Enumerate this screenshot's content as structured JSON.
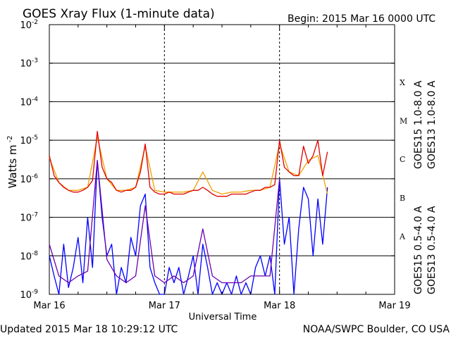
{
  "header": {
    "title": "GOES Xray Flux (1-minute data)",
    "begin": "Begin:  2015 Mar 16 0000 UTC"
  },
  "footer": {
    "updated": "Updated 2015 Mar 18 10:29:12 UTC",
    "credit": "NOAA/SWPC Boulder, CO USA"
  },
  "colors": {
    "goes15_long": "#e00000",
    "goes13_long": "#f0a000",
    "goes15_short": "#0000ff",
    "goes13_short": "#6a00b0"
  },
  "chart_data": {
    "type": "line",
    "title": "GOES Xray Flux (1-minute data)",
    "xlabel": "Universal Time",
    "ylabel": "Watts m",
    "ylabel_sup": "-2",
    "y_scale": "log",
    "ylim": [
      1e-09,
      0.01
    ],
    "xlim": [
      "2015-03-16 00:00",
      "2015-03-19 00:00"
    ],
    "x_ticks": [
      {
        "x": "2015-03-16 00:00",
        "label": "Mar 16"
      },
      {
        "x": "2015-03-17 00:00",
        "label": "Mar 17"
      },
      {
        "x": "2015-03-18 00:00",
        "label": "Mar 18"
      },
      {
        "x": "2015-03-19 00:00",
        "label": "Mar 19"
      }
    ],
    "y_ticks": [
      {
        "value": 1e-09,
        "label": "10",
        "exp": "-9"
      },
      {
        "value": 1e-08,
        "label": "10",
        "exp": "-8"
      },
      {
        "value": 1e-07,
        "label": "10",
        "exp": "-7"
      },
      {
        "value": 1e-06,
        "label": "10",
        "exp": "-6"
      },
      {
        "value": 1e-05,
        "label": "10",
        "exp": "-5"
      },
      {
        "value": 0.0001,
        "label": "10",
        "exp": "-4"
      },
      {
        "value": 0.001,
        "label": "10",
        "exp": "-3"
      },
      {
        "value": 0.01,
        "label": "10",
        "exp": "-2"
      }
    ],
    "flare_classes": [
      {
        "label": "X",
        "value": 0.00032
      },
      {
        "label": "M",
        "value": 3.2e-05
      },
      {
        "label": "C",
        "value": 3.2e-06
      },
      {
        "label": "B",
        "value": 3.2e-07
      },
      {
        "label": "A",
        "value": 3.2e-08
      }
    ],
    "grid": "horizontal lines at each decade",
    "legend": "right side, vertical text",
    "series": [
      {
        "name": "GOES15 1.0-8.0 A",
        "color": "#e00000",
        "x": [
          "2015-03-16 00:00",
          "2015-03-16 01:00",
          "2015-03-16 02:00",
          "2015-03-16 03:00",
          "2015-03-16 04:00",
          "2015-03-16 05:00",
          "2015-03-16 06:00",
          "2015-03-16 07:00",
          "2015-03-16 08:00",
          "2015-03-16 09:00",
          "2015-03-16 10:00",
          "2015-03-16 11:00",
          "2015-03-16 12:00",
          "2015-03-16 13:00",
          "2015-03-16 14:00",
          "2015-03-16 15:00",
          "2015-03-16 16:00",
          "2015-03-16 17:00",
          "2015-03-16 18:00",
          "2015-03-16 19:00",
          "2015-03-16 20:00",
          "2015-03-16 21:00",
          "2015-03-16 22:00",
          "2015-03-16 23:00",
          "2015-03-17 00:00",
          "2015-03-17 01:00",
          "2015-03-17 02:00",
          "2015-03-17 03:00",
          "2015-03-17 04:00",
          "2015-03-17 05:00",
          "2015-03-17 06:00",
          "2015-03-17 07:00",
          "2015-03-17 08:00",
          "2015-03-17 09:00",
          "2015-03-17 10:00",
          "2015-03-17 11:00",
          "2015-03-17 12:00",
          "2015-03-17 13:00",
          "2015-03-17 14:00",
          "2015-03-17 15:00",
          "2015-03-17 16:00",
          "2015-03-17 17:00",
          "2015-03-17 18:00",
          "2015-03-17 19:00",
          "2015-03-17 20:00",
          "2015-03-17 21:00",
          "2015-03-17 22:00",
          "2015-03-17 23:00",
          "2015-03-18 00:00",
          "2015-03-18 01:00",
          "2015-03-18 02:00",
          "2015-03-18 03:00",
          "2015-03-18 04:00",
          "2015-03-18 05:00",
          "2015-03-18 06:00",
          "2015-03-18 07:00",
          "2015-03-18 08:00",
          "2015-03-18 09:00",
          "2015-03-18 10:00"
        ],
        "y": [
          4e-06,
          1.2e-06,
          8e-07,
          6e-07,
          5e-07,
          4.5e-07,
          4.5e-07,
          5e-07,
          6e-07,
          9e-07,
          1.7e-05,
          2e-06,
          1e-06,
          8e-07,
          5e-07,
          4.5e-07,
          5e-07,
          5e-07,
          6e-07,
          1.5e-06,
          8e-06,
          6e-07,
          4.5e-07,
          4e-07,
          4e-07,
          4.5e-07,
          4e-07,
          4e-07,
          4e-07,
          4.5e-07,
          5e-07,
          5e-07,
          6e-07,
          5e-07,
          4e-07,
          3.5e-07,
          3.5e-07,
          3.5e-07,
          4e-07,
          4e-07,
          4e-07,
          4e-07,
          4.5e-07,
          5e-07,
          5e-07,
          6e-07,
          6e-07,
          7e-07,
          1e-05,
          2e-06,
          1.5e-06,
          1.2e-06,
          1.2e-06,
          7e-06,
          2.5e-06,
          4e-06,
          1e-05,
          1.2e-06,
          5e-06
        ]
      },
      {
        "name": "GOES13 1.0-8.0 A",
        "color": "#f0a000",
        "x": [
          "2015-03-16 00:00",
          "2015-03-16 02:00",
          "2015-03-16 04:00",
          "2015-03-16 06:00",
          "2015-03-16 08:00",
          "2015-03-16 10:00",
          "2015-03-16 12:00",
          "2015-03-16 14:00",
          "2015-03-16 16:00",
          "2015-03-16 18:00",
          "2015-03-16 20:00",
          "2015-03-16 22:00",
          "2015-03-17 00:00",
          "2015-03-17 02:00",
          "2015-03-17 04:00",
          "2015-03-17 06:00",
          "2015-03-17 08:00",
          "2015-03-17 10:00",
          "2015-03-17 12:00",
          "2015-03-17 14:00",
          "2015-03-17 16:00",
          "2015-03-17 18:00",
          "2015-03-17 20:00",
          "2015-03-17 22:00",
          "2015-03-18 00:00",
          "2015-03-18 02:00",
          "2015-03-18 04:00",
          "2015-03-18 06:00",
          "2015-03-18 08:00",
          "2015-03-18 10:00"
        ],
        "y": [
          3.5e-06,
          8e-07,
          5e-07,
          5e-07,
          6e-07,
          1.2e-05,
          1e-06,
          5e-07,
          5e-07,
          6e-07,
          7e-06,
          5e-07,
          4.5e-07,
          4.5e-07,
          4.5e-07,
          5e-07,
          1.5e-06,
          5e-07,
          4e-07,
          4.5e-07,
          4.5e-07,
          5e-07,
          5e-07,
          6e-07,
          8e-06,
          1.5e-06,
          1.2e-06,
          3e-06,
          4e-06,
          4e-07
        ]
      },
      {
        "name": "GOES15 0.5-4.0 A",
        "color": "#0000ff",
        "x": [
          "2015-03-16 00:00",
          "2015-03-16 01:00",
          "2015-03-16 02:00",
          "2015-03-16 03:00",
          "2015-03-16 04:00",
          "2015-03-16 05:00",
          "2015-03-16 06:00",
          "2015-03-16 07:00",
          "2015-03-16 08:00",
          "2015-03-16 09:00",
          "2015-03-16 10:00",
          "2015-03-16 11:00",
          "2015-03-16 12:00",
          "2015-03-16 13:00",
          "2015-03-16 14:00",
          "2015-03-16 15:00",
          "2015-03-16 16:00",
          "2015-03-16 17:00",
          "2015-03-16 18:00",
          "2015-03-16 19:00",
          "2015-03-16 20:00",
          "2015-03-16 21:00",
          "2015-03-16 22:00",
          "2015-03-16 23:00",
          "2015-03-17 00:00",
          "2015-03-17 01:00",
          "2015-03-17 02:00",
          "2015-03-17 03:00",
          "2015-03-17 04:00",
          "2015-03-17 05:00",
          "2015-03-17 06:00",
          "2015-03-17 07:00",
          "2015-03-17 08:00",
          "2015-03-17 09:00",
          "2015-03-17 10:00",
          "2015-03-17 11:00",
          "2015-03-17 12:00",
          "2015-03-17 13:00",
          "2015-03-17 14:00",
          "2015-03-17 15:00",
          "2015-03-17 16:00",
          "2015-03-17 17:00",
          "2015-03-17 18:00",
          "2015-03-17 19:00",
          "2015-03-17 20:00",
          "2015-03-17 21:00",
          "2015-03-17 22:00",
          "2015-03-17 23:00",
          "2015-03-18 00:00",
          "2015-03-18 01:00",
          "2015-03-18 02:00",
          "2015-03-18 03:00",
          "2015-03-18 04:00",
          "2015-03-18 05:00",
          "2015-03-18 06:00",
          "2015-03-18 07:00",
          "2015-03-18 08:00",
          "2015-03-18 09:00",
          "2015-03-18 10:00"
        ],
        "y": [
          1e-08,
          3e-09,
          1e-09,
          2e-08,
          1.5e-09,
          5e-09,
          3e-08,
          2e-09,
          1e-07,
          5e-09,
          3e-06,
          1e-07,
          1e-08,
          2e-08,
          1e-09,
          5e-09,
          2e-09,
          3e-08,
          1e-08,
          2e-07,
          4e-07,
          5e-09,
          2e-09,
          1e-09,
          1e-09,
          5e-09,
          2e-09,
          5e-09,
          1e-09,
          3e-09,
          1e-08,
          1e-09,
          2e-08,
          5e-09,
          1e-09,
          2e-09,
          1e-09,
          2e-09,
          1e-09,
          3e-09,
          1e-09,
          2e-09,
          1e-09,
          5e-09,
          1e-08,
          3e-09,
          1e-08,
          1e-09,
          1e-06,
          2e-08,
          1e-07,
          1e-09,
          5e-08,
          6e-07,
          3e-07,
          1e-08,
          3e-07,
          2e-08,
          6e-07
        ]
      },
      {
        "name": "GOES13 0.5-4.0 A",
        "color": "#6a00b0",
        "x": [
          "2015-03-16 00:00",
          "2015-03-16 02:00",
          "2015-03-16 04:00",
          "2015-03-16 06:00",
          "2015-03-16 08:00",
          "2015-03-16 10:00",
          "2015-03-16 12:00",
          "2015-03-16 14:00",
          "2015-03-16 16:00",
          "2015-03-16 18:00",
          "2015-03-16 20:00",
          "2015-03-16 22:00",
          "2015-03-17 00:00",
          "2015-03-17 02:00",
          "2015-03-17 04:00",
          "2015-03-17 06:00",
          "2015-03-17 08:00",
          "2015-03-17 10:00",
          "2015-03-17 12:00",
          "2015-03-17 14:00",
          "2015-03-17 16:00",
          "2015-03-17 18:00",
          "2015-03-17 20:00",
          "2015-03-17 22:00",
          "2015-03-18 00:00"
        ],
        "y": [
          2e-08,
          3e-09,
          2e-09,
          3e-09,
          4e-09,
          3e-06,
          8e-09,
          3e-09,
          2e-09,
          3e-09,
          2e-07,
          3e-09,
          2e-09,
          3e-09,
          2e-09,
          3e-09,
          5e-08,
          3e-09,
          2e-09,
          2e-09,
          2e-09,
          3e-09,
          3e-09,
          3e-09,
          1e-06
        ]
      }
    ]
  }
}
